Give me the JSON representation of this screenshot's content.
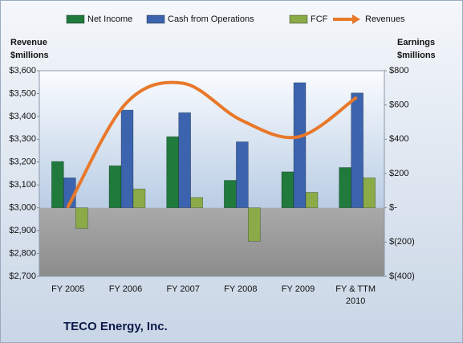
{
  "chart_data": {
    "type": "bar",
    "title": "TECO Energy, Inc.",
    "y_label": "Revenue $millions",
    "y2_label": "Earnings $millions",
    "categories": [
      "FY 2005",
      "FY 2006",
      "FY 2007",
      "FY 2008",
      "FY 2009",
      "FY & TTM 2010"
    ],
    "series": [
      {
        "name": "Net Income",
        "type": "bar",
        "axis": "y2",
        "color": "#1f7a3c",
        "values": [
          270,
          245,
          415,
          160,
          210,
          235
        ]
      },
      {
        "name": "Cash from Operations",
        "type": "bar",
        "axis": "y2",
        "color": "#3c64ae",
        "values": [
          175,
          570,
          555,
          385,
          730,
          670
        ]
      },
      {
        "name": "FCF",
        "type": "bar",
        "axis": "y2",
        "color": "#8aab48",
        "values": [
          -120,
          110,
          60,
          -195,
          90,
          175
        ]
      },
      {
        "name": "Revenues",
        "type": "line",
        "axis": "y",
        "color": "#e8782a",
        "values": [
          3005,
          3455,
          3545,
          3385,
          3310,
          3480
        ]
      }
    ],
    "ylim": [
      2700,
      3600
    ],
    "yticks": [
      {
        "value": 2700,
        "label": "$2,700"
      },
      {
        "value": 2800,
        "label": "$2,800"
      },
      {
        "value": 2900,
        "label": "$2,900"
      },
      {
        "value": 3000,
        "label": "$3,000"
      },
      {
        "value": 3100,
        "label": "$3,100"
      },
      {
        "value": 3200,
        "label": "$3,200"
      },
      {
        "value": 3300,
        "label": "$3,300"
      },
      {
        "value": 3400,
        "label": "$3,400"
      },
      {
        "value": 3500,
        "label": "$3,500"
      },
      {
        "value": 3600,
        "label": "$3,600"
      }
    ],
    "y2lim": [
      -400,
      800
    ],
    "y2ticks": [
      {
        "value": -400,
        "label": "$(400)"
      },
      {
        "value": -200,
        "label": "$(200)"
      },
      {
        "value": 0,
        "label": "$-"
      },
      {
        "value": 200,
        "label": "$200"
      },
      {
        "value": 400,
        "label": "$400"
      },
      {
        "value": 600,
        "label": "$600"
      },
      {
        "value": 800,
        "label": "$800"
      }
    ],
    "legend": "top",
    "grid": false
  }
}
